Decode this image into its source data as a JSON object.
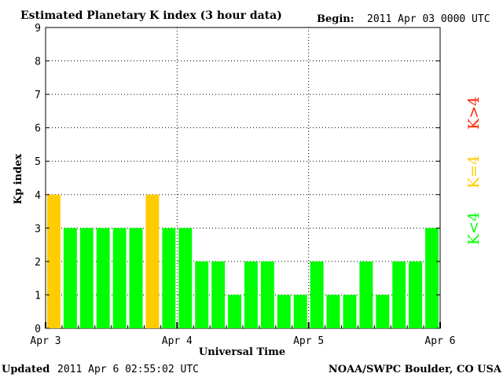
{
  "header": {
    "title": "Estimated Planetary K index (3 hour data)",
    "begin_label": "Begin:",
    "begin_value": "2011 Apr 03 0000 UTC"
  },
  "footer": {
    "updated_label": "Updated",
    "updated_value": "2011 Apr  6 02:55:02 UTC",
    "source": "NOAA/SWPC Boulder, CO USA"
  },
  "legend": {
    "greater": "K>4",
    "equal": "K=4",
    "less": "K<4"
  },
  "colors": {
    "low": "#00ff00",
    "equal": "#ffcc00",
    "high": "#ff2200"
  },
  "chart_data": {
    "type": "bar",
    "title": "Estimated Planetary K index (3 hour data)",
    "xlabel": "Universal Time",
    "ylabel": "Kp index",
    "ylim": [
      0,
      9
    ],
    "yticks": [
      0,
      1,
      2,
      3,
      4,
      5,
      6,
      7,
      8,
      9
    ],
    "xticks": [
      "Apr 3",
      "Apr 4",
      "Apr 5",
      "Apr 6"
    ],
    "grid": true,
    "bin_hours": 3,
    "values": [
      4,
      3,
      3,
      3,
      3,
      3,
      4,
      3,
      3,
      2,
      2,
      1,
      2,
      2,
      1,
      1,
      2,
      1,
      1,
      2,
      1,
      2,
      2,
      3
    ]
  }
}
